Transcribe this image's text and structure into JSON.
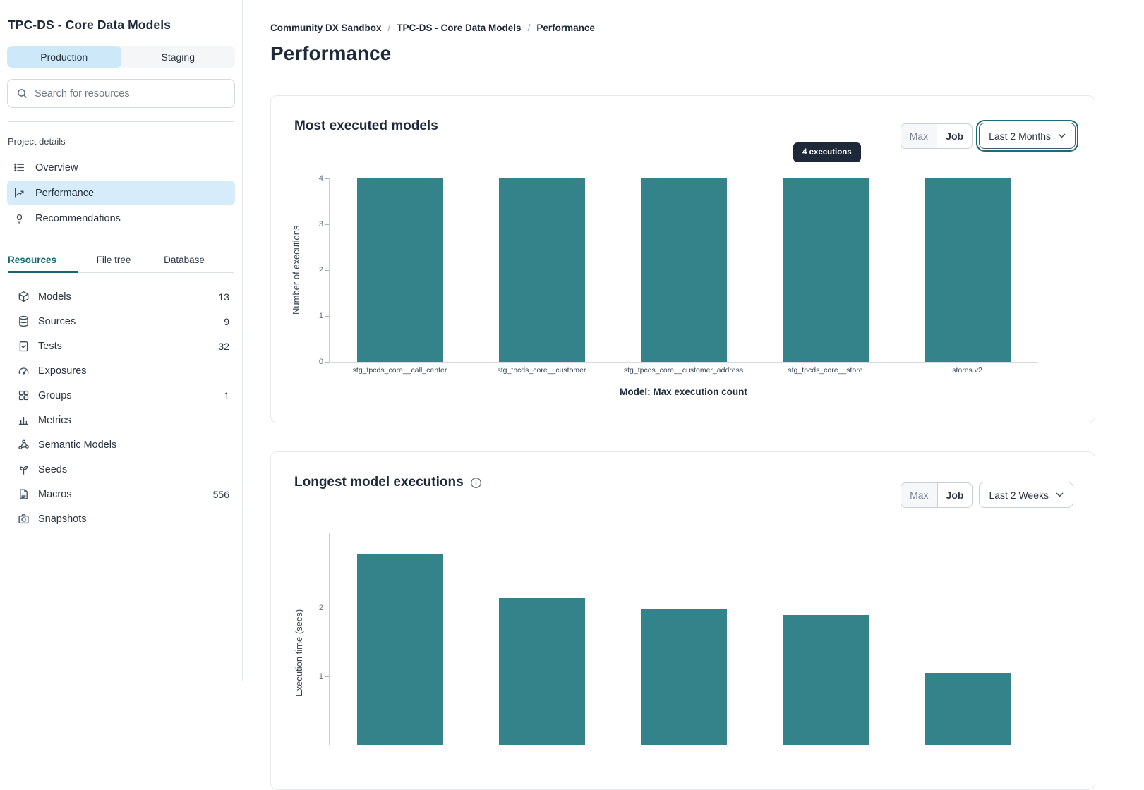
{
  "sidebar": {
    "title": "TPC-DS - Core Data Models",
    "env_tabs": [
      {
        "label": "Production",
        "active": true
      },
      {
        "label": "Staging",
        "active": false
      }
    ],
    "search_placeholder": "Search for resources",
    "section_label": "Project details",
    "nav": [
      {
        "label": "Overview",
        "icon": "list-icon",
        "active": false
      },
      {
        "label": "Performance",
        "icon": "chart-line-icon",
        "active": true
      },
      {
        "label": "Recommendations",
        "icon": "lightbulb-icon",
        "active": false
      }
    ],
    "resource_tabs": [
      {
        "label": "Resources",
        "active": true
      },
      {
        "label": "File tree",
        "active": false
      },
      {
        "label": "Database",
        "active": false
      }
    ],
    "resources": [
      {
        "label": "Models",
        "count": "13",
        "icon": "cube-icon"
      },
      {
        "label": "Sources",
        "count": "9",
        "icon": "database-icon"
      },
      {
        "label": "Tests",
        "count": "32",
        "icon": "clipboard-check-icon"
      },
      {
        "label": "Exposures",
        "count": "",
        "icon": "gauge-icon"
      },
      {
        "label": "Groups",
        "count": "1",
        "icon": "grid-icon"
      },
      {
        "label": "Metrics",
        "count": "",
        "icon": "bar-chart-icon"
      },
      {
        "label": "Semantic Models",
        "count": "",
        "icon": "molecule-icon"
      },
      {
        "label": "Seeds",
        "count": "",
        "icon": "seedling-icon"
      },
      {
        "label": "Macros",
        "count": "556",
        "icon": "document-icon"
      },
      {
        "label": "Snapshots",
        "count": "",
        "icon": "camera-icon"
      }
    ]
  },
  "breadcrumb": {
    "items": [
      "Community DX Sandbox",
      "TPC-DS - Core Data Models",
      "Performance"
    ],
    "separator": "/"
  },
  "page_title": "Performance",
  "cards": [
    {
      "title": "Most executed models",
      "toggle": [
        "Max",
        "Job"
      ],
      "period": "Last 2 Months",
      "tooltip": "4 executions"
    },
    {
      "title": "Longest model executions",
      "toggle": [
        "Max",
        "Job"
      ],
      "period": "Last 2 Weeks"
    }
  ],
  "colors": {
    "bar_teal": "#35838A",
    "accent_teal": "#186672",
    "active_item_bg": "#D7ECFB",
    "env_tab_active_bg": "#CDE8F9",
    "tooltip_bg": "#1D2939"
  },
  "chart_data": [
    {
      "type": "bar",
      "title": "Most executed models",
      "categories": [
        "stg_tpcds_core__call_center",
        "stg_tpcds_core__customer",
        "stg_tpcds_core__customer_address",
        "stg_tpcds_core__store",
        "stores.v2"
      ],
      "values": [
        4,
        4,
        4,
        4,
        4
      ],
      "xlabel": "Model: Max execution count",
      "ylabel": "Number of executions",
      "ylim": [
        0,
        4
      ],
      "yticks": [
        0,
        1,
        2,
        3,
        4
      ],
      "grid": false,
      "legend": false
    },
    {
      "type": "bar",
      "title": "Longest model executions",
      "categories": [],
      "values": [
        2.8,
        2.15,
        2.0,
        1.9,
        1.05
      ],
      "xlabel": "",
      "ylabel": "Execution time (secs)",
      "ylim": [
        0,
        3
      ],
      "yticks_visible": [
        2,
        1
      ],
      "grid": false,
      "legend": false,
      "clipped_at_viewport_bottom": true
    }
  ]
}
